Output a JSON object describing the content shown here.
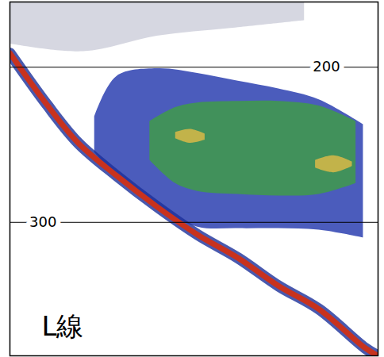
{
  "chart_data": {
    "type": "echogram",
    "label": "L線",
    "xlim": [
      0,
      100
    ],
    "ylim": [
      158,
      386
    ],
    "yticks": [
      200,
      300
    ],
    "tick_labels": "y",
    "grid": true,
    "seabed": {
      "color": "#c8321e",
      "x": [
        0,
        10,
        18.6,
        29,
        40,
        51,
        62,
        73,
        84,
        96.5,
        100
      ],
      "depth": [
        191,
        224,
        249,
        270,
        290,
        308,
        323,
        341,
        356,
        381,
        386
      ]
    },
    "school": [
      {
        "color": "#cfd0dc",
        "x": [
          0,
          20,
          40,
          60,
          80
        ],
        "top": [
          158,
          158,
          158,
          158,
          158
        ],
        "bottom": [
          185,
          190,
          180,
          175,
          170
        ]
      },
      {
        "color": "#2b3fb0",
        "x": [
          23,
          29,
          40,
          51,
          62,
          73,
          84,
          96
        ],
        "top": [
          232,
          206,
          201,
          204,
          209,
          214,
          221,
          237
        ],
        "bottom": [
          255,
          270,
          290,
          303,
          304,
          304,
          305,
          310
        ]
      },
      {
        "color": "#3f9a4a",
        "x": [
          38,
          45,
          51,
          62,
          73,
          84,
          94
        ],
        "top": [
          235,
          226,
          223,
          222,
          222,
          225,
          235
        ],
        "bottom": [
          260,
          275,
          280,
          282,
          283,
          282,
          275
        ]
      },
      {
        "color": "#d9b948",
        "x": [
          45,
          49,
          53
        ],
        "top": [
          242,
          240,
          243
        ],
        "bottom": [
          246,
          249,
          247
        ]
      },
      {
        "color": "#d9b948",
        "x": [
          83,
          88,
          93
        ],
        "top": [
          260,
          257,
          261
        ],
        "bottom": [
          265,
          268,
          264
        ]
      }
    ]
  }
}
